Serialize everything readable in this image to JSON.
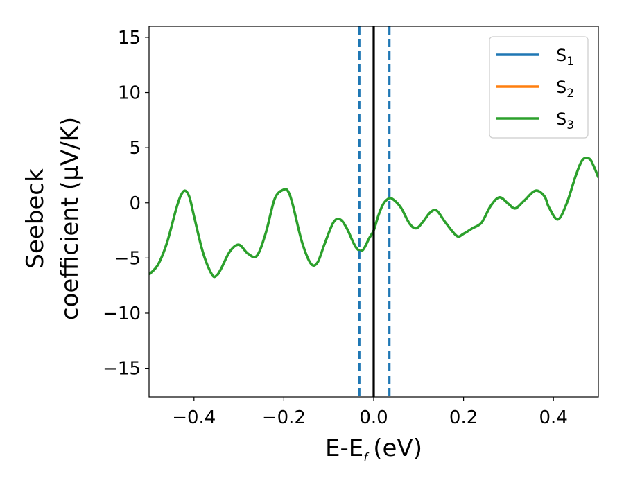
{
  "chart_data": {
    "type": "line",
    "xlabel": "E-E",
    "xlabel_sub": "f",
    "xlabel_unit": "(eV)",
    "ylabel_line1": "Seebeck",
    "ylabel_line2": "coefficient  (μV/K)",
    "xlim": [
      -0.5,
      0.5
    ],
    "ylim": [
      -17.6,
      16
    ],
    "xticks": [
      -0.4,
      -0.2,
      0.0,
      0.2,
      0.4
    ],
    "xtick_labels": [
      "−0.4",
      "−0.2",
      "0.0",
      "0.2",
      "0.4"
    ],
    "yticks": [
      15,
      10,
      5,
      0,
      -5,
      -10,
      -15
    ],
    "ytick_labels": [
      "15",
      "10",
      "5",
      "0",
      "−5",
      "−10",
      "−15"
    ],
    "grid": false,
    "legend_placement": "top-right",
    "legend": [
      {
        "base": "S",
        "sub": "1",
        "color": "#1f77b4"
      },
      {
        "base": "S",
        "sub": "2",
        "color": "#ff7f0e"
      },
      {
        "base": "S",
        "sub": "3",
        "color": "#2ca02c"
      }
    ],
    "series": [
      {
        "name": "S3",
        "color": "#2ca02c",
        "x": [
          -0.5,
          -0.48,
          -0.46,
          -0.44,
          -0.43,
          -0.42,
          -0.41,
          -0.4,
          -0.38,
          -0.36,
          -0.35,
          -0.34,
          -0.32,
          -0.3,
          -0.28,
          -0.26,
          -0.24,
          -0.22,
          -0.2,
          -0.19,
          -0.18,
          -0.16,
          -0.14,
          -0.125,
          -0.11,
          -0.09,
          -0.075,
          -0.06,
          -0.04,
          -0.025,
          -0.01,
          0.0,
          0.01,
          0.02,
          0.03,
          0.04,
          0.06,
          0.08,
          0.095,
          0.11,
          0.125,
          0.14,
          0.16,
          0.185,
          0.2,
          0.22,
          0.24,
          0.26,
          0.28,
          0.3,
          0.315,
          0.335,
          0.36,
          0.38,
          0.39,
          0.41,
          0.43,
          0.45,
          0.465,
          0.48,
          0.49,
          0.5
        ],
        "y": [
          -6.5,
          -5.6,
          -3.6,
          -0.6,
          0.6,
          1.1,
          0.5,
          -1.2,
          -4.5,
          -6.5,
          -6.6,
          -6.0,
          -4.4,
          -3.8,
          -4.6,
          -4.8,
          -2.7,
          0.4,
          1.2,
          1.0,
          -0.2,
          -3.5,
          -5.5,
          -5.4,
          -3.8,
          -1.8,
          -1.5,
          -2.3,
          -4.0,
          -4.3,
          -3.2,
          -2.5,
          -1.2,
          -0.2,
          0.3,
          0.4,
          -0.4,
          -1.9,
          -2.3,
          -1.7,
          -0.9,
          -0.7,
          -1.8,
          -3.0,
          -2.8,
          -2.3,
          -1.8,
          -0.3,
          0.5,
          -0.1,
          -0.5,
          0.2,
          1.1,
          0.6,
          -0.4,
          -1.5,
          0.0,
          2.5,
          3.9,
          4.0,
          3.3,
          2.3
        ]
      }
    ],
    "vlines": [
      {
        "x": -0.032,
        "color": "#1f77b4",
        "style": "dashed"
      },
      {
        "x": 0.0,
        "color": "#000000",
        "style": "solid"
      },
      {
        "x": 0.035,
        "color": "#1f77b4",
        "style": "dashed"
      }
    ]
  }
}
